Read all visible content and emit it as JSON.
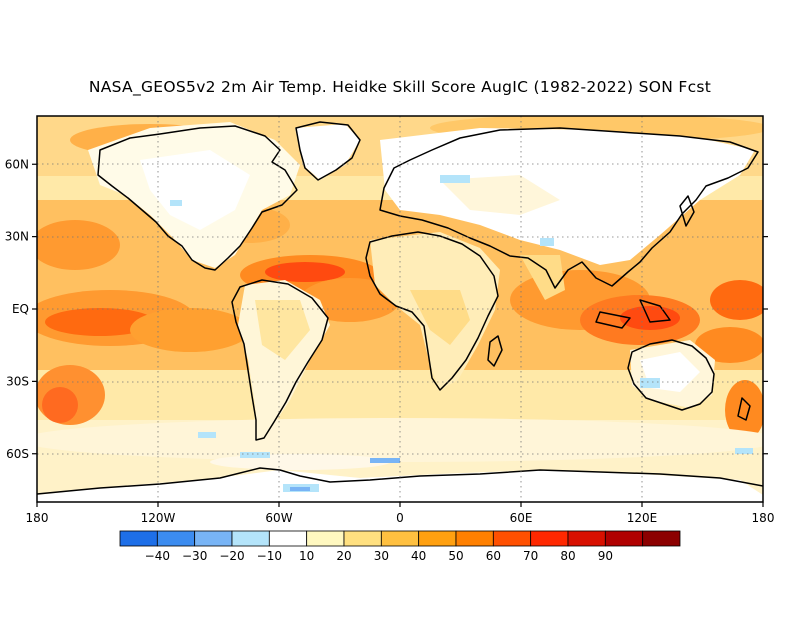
{
  "title": "NASA_GEOS5v2 2m Air Temp. Heidke Skill Score AugIC (1982-2022) SON Fcst",
  "map": {
    "projection": "cylindrical-equidistant",
    "lon_range": [
      -180,
      180
    ],
    "lat_range": [
      -80,
      80
    ],
    "lon_ticks": [
      "180",
      "120W",
      "60W",
      "0",
      "60E",
      "120E",
      "180"
    ],
    "lat_ticks": [
      "60N",
      "30N",
      "EQ",
      "30S",
      "60S"
    ],
    "gridlines": "dotted",
    "coastlines": true
  },
  "colorbar": {
    "orientation": "horizontal",
    "levels": [
      "-40",
      "-30",
      "-20",
      "-10",
      "10",
      "20",
      "30",
      "40",
      "50",
      "60",
      "70",
      "80",
      "90"
    ],
    "colors": [
      "#1e6fe8",
      "#3c8cf0",
      "#78b4f5",
      "#b4e4fa",
      "#ffffff",
      "#fff8c0",
      "#ffe080",
      "#ffc040",
      "#ffa010",
      "#ff8000",
      "#ff5000",
      "#ff2800",
      "#d81000",
      "#b00000",
      "#8c0000"
    ]
  },
  "skill_pattern": {
    "description_levels": {
      "white": 0,
      "light_yellow": 15,
      "yellow": 25,
      "light_orange": 35,
      "orange": 45,
      "dark_orange": 55,
      "red_orange": 65,
      "blue": -15
    }
  }
}
